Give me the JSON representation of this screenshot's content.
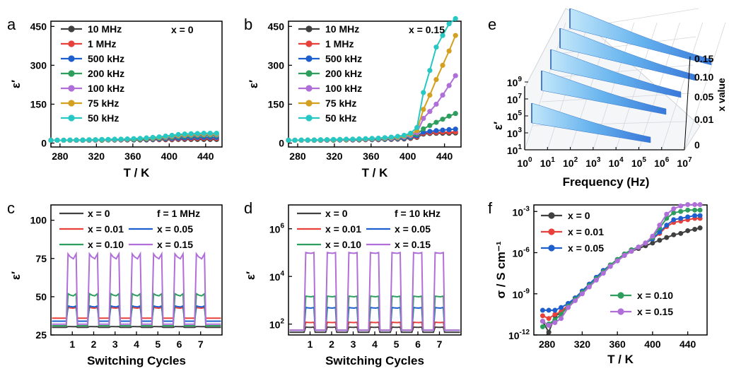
{
  "panels": {
    "a": "a",
    "b": "b",
    "c": "c",
    "d": "d",
    "e": "e",
    "f": "f"
  },
  "chart_data": [
    {
      "id": "a",
      "type": "line",
      "xlabel": "T / K",
      "ylabel": "ε′",
      "xlim": [
        270,
        458
      ],
      "ylim": [
        -15,
        470
      ],
      "xticks": [
        280,
        320,
        360,
        400,
        440
      ],
      "yticks": [
        0,
        150,
        300,
        450
      ],
      "annotation": "x = 0",
      "legend_position": "top-left",
      "x": [
        270,
        277,
        284,
        291,
        298,
        305,
        312,
        319,
        326,
        333,
        340,
        347,
        354,
        361,
        368,
        375,
        382,
        389,
        396,
        403,
        410,
        417,
        424,
        431,
        438,
        445,
        452
      ],
      "series": [
        {
          "name": "10 MHz",
          "color": "#404040",
          "values": [
            11,
            11,
            11,
            11,
            11,
            11,
            11,
            11,
            11,
            12,
            12,
            12,
            12,
            12,
            12,
            12,
            13,
            13,
            13,
            13,
            14,
            14,
            14,
            14,
            14,
            14,
            14
          ]
        },
        {
          "name": "1 MHz",
          "color": "#e8413c",
          "values": [
            11,
            11,
            11,
            11,
            11,
            11,
            11,
            11,
            12,
            12,
            12,
            12,
            12,
            13,
            13,
            13,
            14,
            14,
            15,
            15,
            16,
            17,
            17,
            18,
            18,
            18,
            18
          ]
        },
        {
          "name": "500 kHz",
          "color": "#1e5fd0",
          "values": [
            11,
            11,
            11,
            11,
            11,
            11,
            11,
            12,
            12,
            12,
            12,
            13,
            13,
            13,
            14,
            14,
            15,
            16,
            17,
            18,
            19,
            20,
            21,
            22,
            22,
            22,
            22
          ]
        },
        {
          "name": "200 kHz",
          "color": "#2e9e5e",
          "values": [
            11,
            11,
            11,
            11,
            11,
            11,
            12,
            12,
            12,
            13,
            13,
            13,
            14,
            14,
            15,
            16,
            17,
            18,
            20,
            22,
            24,
            26,
            27,
            28,
            29,
            29,
            29
          ]
        },
        {
          "name": "100 kHz",
          "color": "#b06fd8",
          "values": [
            11,
            11,
            11,
            11,
            11,
            12,
            12,
            12,
            13,
            13,
            14,
            14,
            15,
            16,
            17,
            18,
            19,
            21,
            23,
            26,
            28,
            30,
            31,
            32,
            33,
            33,
            33
          ]
        },
        {
          "name": "75 kHz",
          "color": "#d4a020",
          "values": [
            11,
            11,
            11,
            11,
            12,
            12,
            12,
            13,
            13,
            13,
            14,
            15,
            15,
            16,
            17,
            18,
            20,
            22,
            25,
            28,
            30,
            32,
            33,
            34,
            35,
            35,
            35
          ]
        },
        {
          "name": "50 kHz",
          "color": "#27c7c3",
          "values": [
            11,
            11,
            11,
            12,
            12,
            12,
            13,
            13,
            14,
            14,
            15,
            15,
            16,
            17,
            18,
            20,
            22,
            24,
            27,
            30,
            33,
            35,
            36,
            37,
            38,
            38,
            38
          ]
        }
      ]
    },
    {
      "id": "b",
      "type": "line",
      "xlabel": "T / K",
      "ylabel": "ε′",
      "xlim": [
        270,
        458
      ],
      "ylim": [
        -15,
        470
      ],
      "xticks": [
        280,
        320,
        360,
        400,
        440
      ],
      "yticks": [
        0,
        150,
        300,
        450
      ],
      "annotation": "x = 0.15",
      "legend_position": "top-left",
      "x": [
        270,
        277,
        284,
        291,
        298,
        305,
        312,
        319,
        326,
        333,
        340,
        347,
        354,
        361,
        368,
        375,
        382,
        389,
        396,
        403,
        410,
        417,
        424,
        431,
        438,
        445,
        452
      ],
      "series": [
        {
          "name": "10 MHz",
          "color": "#404040",
          "values": [
            11,
            11,
            11,
            11,
            11,
            11,
            11,
            11,
            12,
            12,
            12,
            12,
            13,
            13,
            13,
            14,
            14,
            15,
            16,
            18,
            22,
            35,
            37,
            38,
            38,
            38,
            39
          ]
        },
        {
          "name": "1 MHz",
          "color": "#e8413c",
          "values": [
            11,
            11,
            11,
            11,
            11,
            11,
            11,
            12,
            12,
            12,
            12,
            13,
            13,
            14,
            14,
            15,
            15,
            16,
            18,
            20,
            24,
            38,
            40,
            41,
            42,
            42,
            43
          ]
        },
        {
          "name": "500 kHz",
          "color": "#1e5fd0",
          "values": [
            11,
            11,
            11,
            11,
            11,
            11,
            12,
            12,
            12,
            13,
            13,
            13,
            14,
            14,
            15,
            15,
            16,
            17,
            19,
            22,
            28,
            42,
            45,
            48,
            50,
            52,
            54
          ]
        },
        {
          "name": "200 kHz",
          "color": "#2e9e5e",
          "values": [
            11,
            11,
            11,
            11,
            11,
            12,
            12,
            12,
            13,
            13,
            14,
            14,
            15,
            15,
            16,
            17,
            18,
            19,
            22,
            26,
            34,
            55,
            68,
            80,
            92,
            104,
            114
          ]
        },
        {
          "name": "100 kHz",
          "color": "#b06fd8",
          "values": [
            11,
            11,
            11,
            11,
            12,
            12,
            12,
            13,
            13,
            14,
            14,
            15,
            15,
            16,
            17,
            18,
            19,
            21,
            24,
            29,
            40,
            95,
            122,
            150,
            185,
            222,
            260
          ]
        },
        {
          "name": "75 kHz",
          "color": "#d4a020",
          "values": [
            11,
            11,
            11,
            12,
            12,
            12,
            13,
            13,
            14,
            14,
            15,
            15,
            16,
            17,
            18,
            19,
            21,
            23,
            27,
            33,
            48,
            130,
            185,
            245,
            300,
            355,
            415
          ]
        },
        {
          "name": "50 kHz",
          "color": "#27c7c3",
          "values": [
            11,
            11,
            12,
            12,
            12,
            13,
            13,
            14,
            14,
            15,
            15,
            16,
            17,
            18,
            19,
            21,
            23,
            26,
            30,
            38,
            60,
            195,
            280,
            370,
            415,
            460,
            480
          ]
        }
      ]
    },
    {
      "id": "c",
      "type": "line",
      "xlabel": "Switching Cycles",
      "ylabel": "ε′",
      "xlim": [
        0,
        8
      ],
      "ylim": [
        25,
        110
      ],
      "xticks": [
        1,
        2,
        3,
        4,
        5,
        6,
        7
      ],
      "yticks": [
        25,
        50,
        75,
        100
      ],
      "annotation": "f = 1 MHz",
      "legend_position": "top",
      "series": [
        {
          "name": "x = 0",
          "color": "#404040",
          "low": 30,
          "high": 30.5
        },
        {
          "name": "x = 0.01",
          "color": "#e8413c",
          "low": 36,
          "high": 43
        },
        {
          "name": "x = 0.05",
          "color": "#1e5fd0",
          "low": 34,
          "high": 44
        },
        {
          "name": "x = 0.10",
          "color": "#2e9e5e",
          "low": 31,
          "high": 52
        },
        {
          "name": "x = 0.15",
          "color": "#b06fd8",
          "low": 32,
          "high": 78
        }
      ]
    },
    {
      "id": "d",
      "type": "line",
      "xlabel": "Switching Cycles",
      "ylabel": "ε′",
      "yscale": "log",
      "xlim": [
        0,
        8
      ],
      "ylim": [
        35,
        10000000
      ],
      "xticks": [
        1,
        2,
        3,
        4,
        5,
        6,
        7
      ],
      "yticks": [
        100,
        10000,
        1000000
      ],
      "annotation": "f = 10 kHz",
      "legend_position": "top",
      "series": [
        {
          "name": "x = 0",
          "color": "#404040",
          "low": 45,
          "high": 75
        },
        {
          "name": "x = 0.01",
          "color": "#e8413c",
          "low": 55,
          "high": 120
        },
        {
          "name": "x = 0.05",
          "color": "#1e5fd0",
          "low": 55,
          "high": 500
        },
        {
          "name": "x = 0.10",
          "color": "#2e9e5e",
          "low": 55,
          "high": 1500
        },
        {
          "name": "x = 0.15",
          "color": "#b06fd8",
          "low": 55,
          "high": 100000
        }
      ]
    },
    {
      "id": "e",
      "type": "area",
      "view": "3d",
      "xlabel": "Frequency (Hz)",
      "ylabel": "ε′",
      "zlabel": "x value",
      "xscale": "log",
      "yscale": "log",
      "xticks": [
        1,
        10,
        100,
        1000,
        10000,
        100000,
        1000000,
        10000000
      ],
      "yticks": [
        10,
        1000,
        100000,
        10000000,
        1000000000
      ],
      "zticks": [
        "0",
        "0.01",
        "0.05",
        "0.10",
        "0.15"
      ],
      "color": "#3a8ee8"
    },
    {
      "id": "f",
      "type": "line",
      "xlabel": "T / K",
      "ylabel": "σ / S cm⁻¹",
      "yscale": "log",
      "xlim": [
        265,
        462
      ],
      "ylim": [
        1e-12,
        0.003
      ],
      "xticks": [
        280,
        320,
        360,
        400,
        440
      ],
      "yticks": [
        1e-12,
        1e-09,
        1e-06,
        0.001
      ],
      "legend_position": "top-left, bottom-right",
      "x": [
        275,
        282,
        289,
        296,
        304,
        312,
        320,
        328,
        336,
        344,
        352,
        360,
        368,
        376,
        384,
        392,
        400,
        408,
        416,
        424,
        432,
        440,
        448,
        454
      ],
      "series": [
        {
          "name": "x = 0",
          "color": "#404040",
          "values": [
            -11.0,
            -11.8,
            -10.6,
            -10.4,
            -9.9,
            -9.4,
            -8.9,
            -8.4,
            -7.9,
            -7.4,
            -7.0,
            -6.6,
            -6.2,
            -5.9,
            -5.7,
            -5.5,
            -5.3,
            -5.1,
            -4.9,
            -4.7,
            -4.6,
            -4.4,
            -4.3,
            -4.2
          ]
        },
        {
          "name": "x = 0.01",
          "color": "#e8413c",
          "values": [
            -10.6,
            -10.8,
            -10.5,
            -10.3,
            -9.8,
            -9.3,
            -8.8,
            -8.3,
            -7.8,
            -7.3,
            -6.9,
            -6.5,
            -6.1,
            -5.8,
            -5.6,
            -5.3,
            -5.0,
            -4.6,
            -4.1,
            -3.8,
            -3.7,
            -3.6,
            -3.5,
            -3.5
          ]
        },
        {
          "name": "x = 0.05",
          "color": "#1e5fd0",
          "values": [
            -10.2,
            -10.2,
            -10.2,
            -10.0,
            -9.7,
            -9.3,
            -8.8,
            -8.3,
            -7.8,
            -7.3,
            -6.9,
            -6.5,
            -6.1,
            -5.8,
            -5.6,
            -5.3,
            -5.0,
            -4.5,
            -4.0,
            -3.6,
            -3.5,
            -3.4,
            -3.3,
            -3.3
          ]
        },
        {
          "name": "x = 0.10",
          "color": "#2e9e5e",
          "values": [
            -11.4,
            -11.2,
            -10.9,
            -10.5,
            -9.9,
            -9.4,
            -8.9,
            -8.4,
            -7.9,
            -7.4,
            -6.9,
            -6.5,
            -6.1,
            -5.8,
            -5.6,
            -5.3,
            -4.9,
            -4.2,
            -3.5,
            -3.1,
            -3.0,
            -2.9,
            -2.9,
            -2.9
          ]
        },
        {
          "name": "x = 0.15",
          "color": "#b06fd8",
          "values": [
            -11.0,
            -11.3,
            -11.1,
            -10.8,
            -10.0,
            -9.5,
            -9.0,
            -8.5,
            -8.0,
            -7.5,
            -7.0,
            -6.6,
            -6.2,
            -5.9,
            -5.6,
            -5.3,
            -4.8,
            -4.0,
            -3.2,
            -2.8,
            -2.6,
            -2.5,
            -2.5,
            -2.5
          ]
        }
      ]
    }
  ]
}
